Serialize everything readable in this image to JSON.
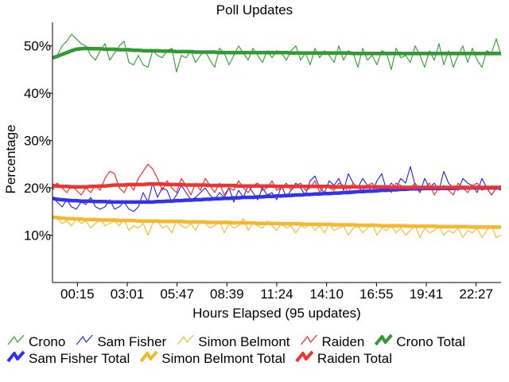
{
  "chart_data": {
    "type": "line",
    "title": "Poll Updates",
    "xlabel": "Hours Elapsed (95 updates)",
    "ylabel": "Percentage",
    "ylim": [
      0,
      55
    ],
    "yticks": [
      10,
      20,
      30,
      40,
      50
    ],
    "ytick_labels": [
      "10%",
      "20%",
      "30%",
      "40%",
      "50%"
    ],
    "xtick_labels": [
      "00:15",
      "03:01",
      "05:47",
      "08:39",
      "11:24",
      "14:10",
      "16:55",
      "19:41",
      "22:27"
    ],
    "x_count": 95,
    "grid": false,
    "legend_position": "bottom",
    "series": [
      {
        "name": "Crono",
        "color": "#2ca02c",
        "style": "thin",
        "values": [
          47.5,
          48,
          50,
          51,
          52.5,
          51.5,
          50.5,
          50,
          48,
          47,
          49,
          50.5,
          47,
          48.5,
          50,
          51,
          46.5,
          46,
          48,
          46,
          45.5,
          49,
          48,
          47.5,
          49,
          49.5,
          44.5,
          48,
          47.5,
          49,
          46.5,
          48,
          49,
          47,
          45.5,
          49.5,
          48.5,
          46,
          48,
          50,
          48.5,
          47,
          49.5,
          48,
          46.5,
          49,
          47.5,
          49,
          48.5,
          47,
          49,
          50,
          47,
          48.5,
          46,
          49.5,
          47.5,
          49,
          48,
          46.5,
          50,
          47,
          49,
          48.5,
          45.5,
          49.5,
          47,
          48,
          46,
          49,
          48.5,
          45,
          49.5,
          47.5,
          48,
          46.5,
          50,
          48,
          45.5,
          49,
          47,
          50.5,
          46,
          49,
          45.5,
          48,
          50,
          46.5,
          49.5,
          47,
          45.5,
          49,
          48.5,
          51.5,
          48
        ]
      },
      {
        "name": "Sam Fisher",
        "color": "#2222dd",
        "style": "thin",
        "values": [
          18,
          17,
          16,
          17.5,
          16,
          15.5,
          17,
          16.5,
          18,
          16,
          15.5,
          16,
          17.5,
          15.5,
          16,
          17,
          15.5,
          15,
          16,
          19,
          17,
          21,
          18,
          20,
          19.5,
          17,
          18.5,
          20.5,
          19,
          17.5,
          18,
          19,
          20,
          18.5,
          17.5,
          19,
          18,
          20,
          17,
          19.5,
          18,
          20.5,
          19,
          17.5,
          20,
          18.5,
          19,
          17.5,
          20.5,
          18,
          19.5,
          21,
          20,
          18.5,
          21.5,
          22.5,
          20,
          19,
          21.5,
          20.5,
          22,
          19.5,
          23,
          21,
          20,
          22,
          20.5,
          19,
          21.5,
          23,
          19.5,
          21,
          20,
          22,
          21,
          24.5,
          20.5,
          19,
          22,
          20,
          21,
          19.5,
          23.5,
          21,
          20,
          19.5,
          22,
          21,
          20.5,
          19,
          22,
          20,
          18.5,
          20,
          19.5
        ]
      },
      {
        "name": "Simon Belmont",
        "color": "#f5b82e",
        "style": "thin",
        "values": [
          14,
          13.5,
          12.5,
          13,
          12,
          13.5,
          12.5,
          13,
          11.5,
          12.5,
          13.5,
          12,
          12.5,
          13,
          12,
          13.5,
          11,
          12,
          11.5,
          12.5,
          10,
          12.5,
          13,
          11.5,
          12,
          10.5,
          13,
          12,
          11.5,
          12.5,
          11,
          13,
          12.5,
          11.5,
          12,
          13,
          10.5,
          12.5,
          11.5,
          12,
          13.5,
          11,
          12.5,
          12,
          11.5,
          13,
          12,
          11,
          12.5,
          11.5,
          12,
          10.5,
          12,
          11.5,
          12.5,
          11,
          12,
          10.5,
          12.5,
          11,
          11.5,
          12,
          10,
          11.5,
          12,
          10.5,
          11.5,
          12.5,
          10,
          11.5,
          11,
          12,
          10.5,
          11.5,
          10,
          11,
          12,
          9.5,
          11.5,
          10.5,
          11,
          12,
          10,
          11,
          10.5,
          11.5,
          9.5,
          11,
          10.5,
          11.5,
          9.5,
          11,
          12,
          9.5,
          10
        ]
      },
      {
        "name": "Raiden",
        "color": "#ee2222",
        "style": "thin",
        "values": [
          19.5,
          21,
          20,
          19,
          20.5,
          19.5,
          18.5,
          20,
          19,
          20.5,
          19.5,
          22,
          23.5,
          23,
          20,
          19,
          21,
          19.5,
          22,
          23.5,
          25,
          24,
          22,
          19.5,
          21.5,
          20,
          19,
          22,
          20.5,
          18.5,
          21,
          19.5,
          22,
          20.5,
          19,
          21,
          18.5,
          20,
          19.5,
          21.5,
          20,
          19,
          20.5,
          21,
          19.5,
          20,
          21.5,
          19.5,
          20,
          21,
          19.5,
          20.5,
          21,
          19.5,
          20,
          21.5,
          19,
          20.5,
          20,
          19.5,
          21,
          20.5,
          19,
          21,
          20,
          19.5,
          20.5,
          21,
          19.5,
          20,
          20.5,
          19,
          21,
          20.5,
          19.5,
          20,
          21,
          19.5,
          20,
          21,
          18.5,
          20,
          20.5,
          19.5,
          18.5,
          21,
          20,
          19,
          20.5,
          21,
          19.5,
          20,
          18.5,
          20,
          20.5
        ]
      },
      {
        "name": "Crono Total",
        "color": "#339933",
        "style": "thick",
        "values": [
          47.5,
          47.8,
          48.2,
          48.6,
          49,
          49.3,
          49.4,
          49.5,
          49.4,
          49.4,
          49.4,
          49.3,
          49.3,
          49.3,
          49.2,
          49.2,
          49.2,
          49.1,
          49.1,
          49,
          49,
          49,
          49,
          48.9,
          48.9,
          48.9,
          48.8,
          48.8,
          48.8,
          48.8,
          48.7,
          48.7,
          48.7,
          48.7,
          48.7,
          48.6,
          48.6,
          48.6,
          48.6,
          48.6,
          48.6,
          48.6,
          48.6,
          48.6,
          48.6,
          48.6,
          48.6,
          48.6,
          48.6,
          48.6,
          48.5,
          48.5,
          48.5,
          48.5,
          48.5,
          48.5,
          48.5,
          48.5,
          48.5,
          48.5,
          48.5,
          48.5,
          48.5,
          48.4,
          48.4,
          48.4,
          48.4,
          48.4,
          48.4,
          48.4,
          48.4,
          48.4,
          48.4,
          48.4,
          48.4,
          48.4,
          48.4,
          48.4,
          48.4,
          48.4,
          48.4,
          48.4,
          48.4,
          48.4,
          48.4,
          48.4,
          48.4,
          48.4,
          48.4,
          48.4,
          48.4,
          48.4,
          48.4,
          48.4,
          48.4
        ]
      },
      {
        "name": "Sam Fisher Total",
        "color": "#3333ee",
        "style": "thick",
        "values": [
          17.8,
          17.6,
          17.5,
          17.4,
          17.3,
          17.3,
          17.2,
          17.2,
          17.2,
          17.1,
          17.1,
          17.1,
          17,
          17,
          17,
          17,
          17,
          17,
          17,
          17,
          17,
          17,
          17.1,
          17.1,
          17.2,
          17.2,
          17.3,
          17.3,
          17.4,
          17.4,
          17.5,
          17.5,
          17.6,
          17.6,
          17.7,
          17.7,
          17.8,
          17.8,
          17.9,
          17.9,
          18,
          18,
          18,
          18.1,
          18.1,
          18.2,
          18.2,
          18.3,
          18.3,
          18.4,
          18.4,
          18.5,
          18.5,
          18.6,
          18.6,
          18.7,
          18.7,
          18.8,
          18.8,
          18.9,
          18.9,
          19,
          19,
          19.1,
          19.2,
          19.2,
          19.3,
          19.3,
          19.4,
          19.5,
          19.5,
          19.6,
          19.6,
          19.7,
          19.7,
          19.8,
          19.8,
          19.8,
          19.9,
          19.9,
          19.9,
          19.9,
          19.9,
          19.9,
          19.9,
          20,
          20,
          20,
          20,
          20,
          20,
          20,
          20,
          20,
          20
        ]
      },
      {
        "name": "Simon Belmont Total",
        "color": "#f5b82e",
        "style": "thick",
        "values": [
          13.8,
          13.7,
          13.6,
          13.5,
          13.5,
          13.4,
          13.4,
          13.3,
          13.3,
          13.3,
          13.2,
          13.2,
          13.2,
          13.2,
          13.1,
          13.1,
          13.1,
          13.1,
          13,
          13,
          13,
          13,
          13,
          12.9,
          12.9,
          12.9,
          12.9,
          12.9,
          12.8,
          12.8,
          12.8,
          12.8,
          12.8,
          12.7,
          12.7,
          12.7,
          12.7,
          12.7,
          12.6,
          12.6,
          12.6,
          12.6,
          12.6,
          12.5,
          12.5,
          12.5,
          12.5,
          12.5,
          12.4,
          12.4,
          12.4,
          12.4,
          12.4,
          12.3,
          12.3,
          12.3,
          12.3,
          12.3,
          12.3,
          12.2,
          12.2,
          12.2,
          12.2,
          12.2,
          12.1,
          12.1,
          12.1,
          12.1,
          12.1,
          12,
          12,
          12,
          12,
          12,
          12,
          11.9,
          11.9,
          11.9,
          11.9,
          11.9,
          11.9,
          11.8,
          11.8,
          11.8,
          11.8,
          11.8,
          11.8,
          11.8,
          11.7,
          11.7,
          11.7,
          11.7,
          11.7,
          11.7,
          11.7
        ]
      },
      {
        "name": "Raiden Total",
        "color": "#ee3333",
        "style": "thick",
        "values": [
          20.5,
          20.4,
          20.3,
          20.3,
          20.2,
          20.2,
          20.2,
          20.2,
          20.3,
          20.3,
          20.4,
          20.4,
          20.5,
          20.6,
          20.6,
          20.6,
          20.7,
          20.7,
          20.7,
          20.7,
          20.8,
          20.8,
          20.8,
          20.8,
          20.7,
          20.7,
          20.7,
          20.7,
          20.6,
          20.6,
          20.6,
          20.6,
          20.6,
          20.5,
          20.5,
          20.5,
          20.5,
          20.5,
          20.5,
          20.4,
          20.4,
          20.4,
          20.4,
          20.4,
          20.4,
          20.4,
          20.4,
          20.3,
          20.3,
          20.3,
          20.3,
          20.3,
          20.3,
          20.3,
          20.3,
          20.3,
          20.3,
          20.3,
          20.3,
          20.2,
          20.2,
          20.2,
          20.2,
          20.2,
          20.2,
          20.2,
          20.2,
          20.2,
          20.2,
          20.2,
          20.2,
          20.1,
          20.1,
          20.1,
          20.1,
          20.1,
          20.1,
          20.1,
          20.1,
          20.1,
          20.1,
          20.1,
          20.1,
          20.1,
          20.1,
          20.1,
          20.1,
          20.1,
          20.1,
          20.1,
          20.1,
          20.1,
          20.1,
          20.1,
          20.1
        ]
      }
    ]
  }
}
